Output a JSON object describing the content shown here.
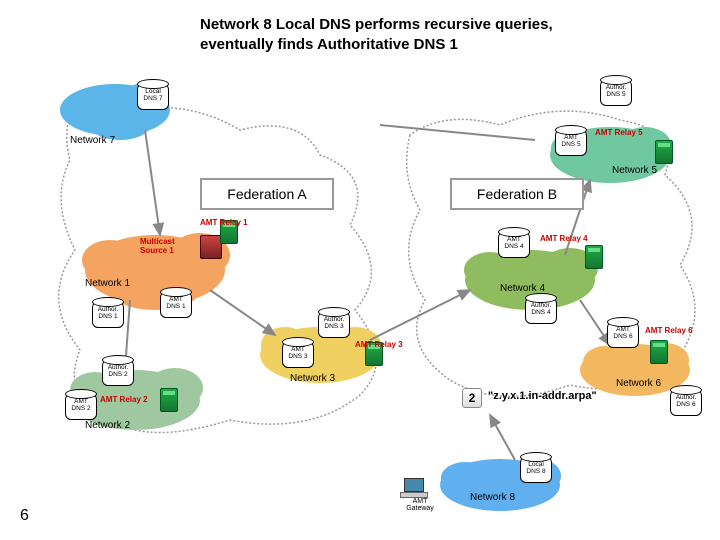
{
  "title": "Network 8 Local DNS performs recursive queries, eventually finds Authoritative DNS 1",
  "pageNumber": "6",
  "federations": {
    "a": "Federation A",
    "b": "Federation B"
  },
  "clouds": {
    "net7": {
      "label": "Network 7",
      "color": "#5bb5e8"
    },
    "net1": {
      "label": "Network 1",
      "color": "#f4a460"
    },
    "net2": {
      "label": "Network 2",
      "color": "#a0c8a0"
    },
    "net3": {
      "label": "Network 3",
      "color": "#f0d060"
    },
    "net4": {
      "label": "Network 4",
      "color": "#8fbc5f"
    },
    "net5": {
      "label": "Network 5",
      "color": "#70c8a0"
    },
    "net6": {
      "label": "Network 6",
      "color": "#f4b860"
    },
    "net8": {
      "label": "Network 8",
      "color": "#60b0f0"
    }
  },
  "cylinders": {
    "localDns7": "Local\nDNS 7",
    "authorDns5": "Author.\nDNS 5",
    "amtDns5": "AMT\nDNS 5",
    "amtDns4": "AMT\nDNS 4",
    "authorDns4": "Author.\nDNS 4",
    "amtDns1": "AMT\nDNS 1",
    "authorDns1": "Author.\nDNS 1",
    "authorDns2": "Author.\nDNS 2",
    "amtDns2": "AMT\nDNS 2",
    "authorDns3": "Author.\nDNS 3",
    "amtDns3": "AMT\nDNS 3",
    "amtDns6": "AMT\nDNS 6",
    "authorDns6": "Author.\nDNS 6",
    "localDns8": "Local\nDNS 8"
  },
  "relays": {
    "r1": "AMT Relay 1",
    "r2": "AMT Relay 2",
    "r3": "AMT Relay 3",
    "r4": "AMT Relay 4",
    "r5": "AMT Relay 5",
    "r6": "AMT Relay 6"
  },
  "source": "Multicast\nSource 1",
  "gateway": "AMT\nGateway",
  "step": "2",
  "query": "\"z.y.x.1.in-addr.arpa\"",
  "colors": {
    "relayGreen": "#2a8b3a",
    "sourceRed": "#b03030",
    "relayText": "#c00000",
    "arrowGray": "#909090",
    "arrowDark": "#808080"
  }
}
